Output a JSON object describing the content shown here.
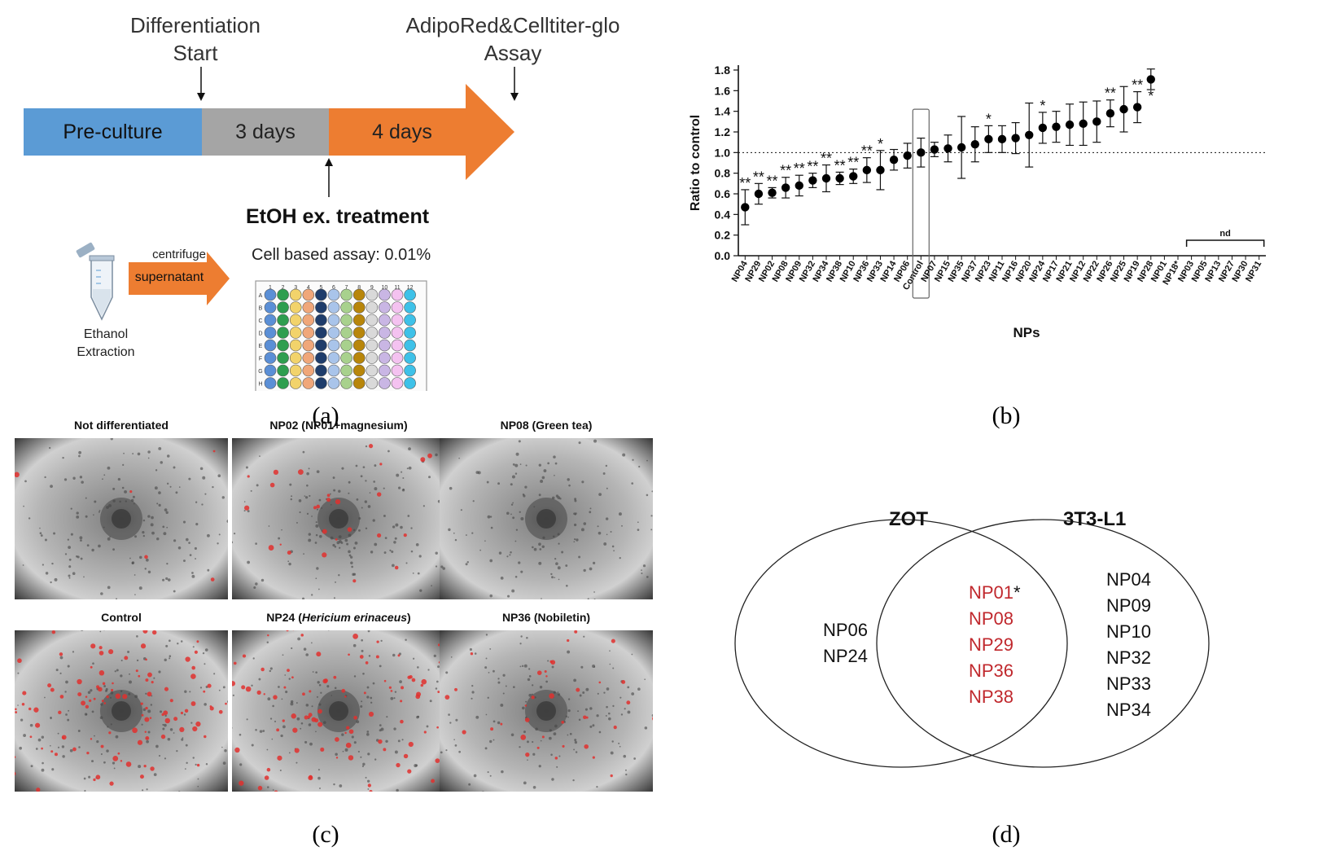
{
  "panel_a": {
    "label_start": [
      "Differentiation",
      "Start"
    ],
    "label_assay": [
      "AdipoRed&Celltiter-glo",
      "Assay"
    ],
    "seg_preculture": "Pre-culture",
    "seg_3days": "3 days",
    "seg_4days": "4 days",
    "treatment": "EtOH ex. treatment",
    "cell_assay": "Cell based assay: 0.01%",
    "centrifuge": "centrifuge",
    "supernatant": "supernatant",
    "ethanol": [
      "Ethanol",
      "Extraction"
    ],
    "plate_cols": [
      "1",
      "2",
      "3",
      "4",
      "5",
      "6",
      "7",
      "8",
      "9",
      "10",
      "11",
      "12"
    ],
    "plate_rows": [
      "A",
      "B",
      "C",
      "D",
      "E",
      "F",
      "G",
      "H"
    ],
    "plate_colors": [
      "#5b8fd6",
      "#2e9e4f",
      "#f2d36b",
      "#f0a77a",
      "#1f3d6b",
      "#a9c4ea",
      "#a8d18d",
      "#b8860b",
      "#d9d9d9",
      "#c9b6e4",
      "#f4c2f0",
      "#3ec1e8"
    ],
    "colors": {
      "preculture": "#5b9bd5",
      "three_days": "#a5a5a5",
      "four_days": "#ed7d31"
    },
    "caption": "(a)"
  },
  "panel_b": {
    "caption": "(b)",
    "nd_label": "nd",
    "chart_data": {
      "type": "scatter",
      "title": "",
      "xlabel": "NPs",
      "ylabel": "Ratio to control",
      "ylim": [
        0,
        1.8
      ],
      "yticks": [
        "0.0",
        "0.2",
        "0.4",
        "0.6",
        "0.8",
        "1.0",
        "1.2",
        "1.4",
        "1.6",
        "1.8"
      ],
      "reference_line": 1.0,
      "categories": [
        "NP04",
        "NP29",
        "NP02",
        "NP08",
        "NP09",
        "NP32",
        "NP34",
        "NP38",
        "NP10",
        "NP36",
        "NP33",
        "NP14",
        "NP06",
        "Control",
        "NP07",
        "NP15",
        "NP35",
        "NP37",
        "NP23",
        "NP11",
        "NP16",
        "NP20",
        "NP24",
        "NP17",
        "NP21",
        "NP12",
        "NP22",
        "NP26",
        "NP25",
        "NP19",
        "NP28",
        "NP01",
        "NP18*",
        "NP03",
        "NP05",
        "NP13",
        "NP27",
        "NP30",
        "NP31"
      ],
      "values": [
        0.47,
        0.6,
        0.61,
        0.66,
        0.68,
        0.73,
        0.75,
        0.75,
        0.77,
        0.83,
        0.83,
        0.93,
        0.97,
        1.0,
        1.03,
        1.04,
        1.05,
        1.08,
        1.13,
        1.13,
        1.14,
        1.17,
        1.24,
        1.25,
        1.27,
        1.28,
        1.3,
        1.38,
        1.42,
        1.44,
        1.71,
        null,
        null,
        null,
        null,
        null,
        null,
        null,
        null
      ],
      "errors": [
        0.17,
        0.1,
        0.05,
        0.1,
        0.1,
        0.07,
        0.13,
        0.06,
        0.07,
        0.12,
        0.19,
        0.1,
        0.12,
        0.14,
        0.07,
        0.13,
        0.3,
        0.17,
        0.13,
        0.13,
        0.15,
        0.31,
        0.15,
        0.15,
        0.2,
        0.21,
        0.2,
        0.13,
        0.22,
        0.15,
        0.1,
        null,
        null,
        null,
        null,
        null,
        null,
        null,
        null
      ],
      "significance": [
        "**",
        "**",
        "**",
        "**",
        "**",
        "**",
        "**",
        "**",
        "**",
        "**",
        "*",
        "",
        "",
        "",
        "",
        "",
        "",
        "",
        "*",
        "",
        "",
        "",
        "*",
        "",
        "",
        "",
        "",
        "**",
        "",
        "**",
        "*",
        "",
        "",
        "",
        "",
        "",
        "",
        "",
        ""
      ],
      "highlight": "Control",
      "nd_range": [
        "NP03",
        "NP31"
      ]
    }
  },
  "panel_c": {
    "caption": "(c)",
    "images": [
      {
        "title": "Not differentiated",
        "red": 5
      },
      {
        "title": "NP02 (NP01+magnesium)",
        "red": 30
      },
      {
        "title": "NP08 (Green tea)",
        "red": 0
      },
      {
        "title": "Control",
        "red": 120
      },
      {
        "title_pre": "NP24 (",
        "title_it": "Hericium erinaceus",
        "title_post": ")",
        "red": 110
      },
      {
        "title": "NP36 (Nobiletin)",
        "red": 45
      }
    ]
  },
  "panel_d": {
    "caption": "(d)",
    "left_title": "ZOT",
    "right_title": "3T3-L1",
    "left_only": [
      "NP06",
      "NP24"
    ],
    "both": [
      "NP01",
      "NP08",
      "NP29",
      "NP36",
      "NP38"
    ],
    "both_star": "*",
    "right_only": [
      "NP04",
      "NP09",
      "NP10",
      "NP32",
      "NP33",
      "NP34"
    ],
    "colors": {
      "shared": "#c0282d",
      "text": "#111111"
    }
  }
}
